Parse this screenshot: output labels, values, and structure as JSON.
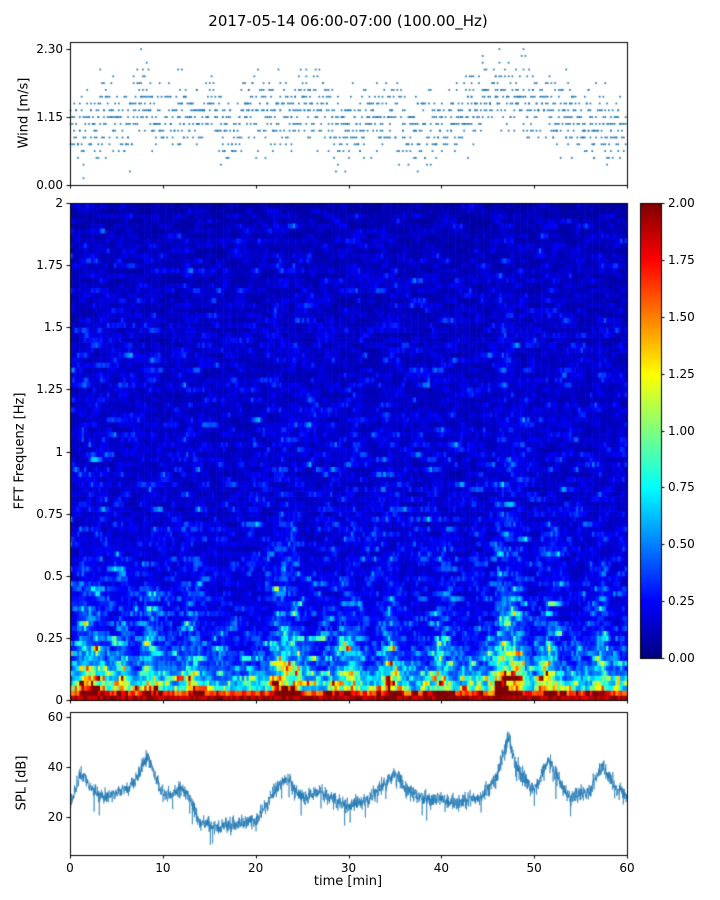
{
  "figure": {
    "title": "2017-05-14 06:00-07:00 (100.00_Hz)",
    "background": "#ffffff",
    "accent_blue": "#1f77b4"
  },
  "chart_data": [
    {
      "id": "wind",
      "type": "scatter",
      "ylabel": "Wind [m/s]",
      "ylim": [
        0,
        2.42
      ],
      "yticks": [
        "0.00",
        "1.15",
        "2.30"
      ],
      "ytick_values": [
        0,
        1.15,
        2.3
      ],
      "xlim": [
        0,
        60
      ],
      "marker_color": "#1f77b4",
      "value_step": 0.115,
      "value_range": [
        0.115,
        2.3
      ],
      "envelope": [
        [
          0,
          0.7
        ],
        [
          2,
          1.0
        ],
        [
          4,
          1.2
        ],
        [
          6,
          0.95
        ],
        [
          8,
          1.45
        ],
        [
          10,
          1.0
        ],
        [
          12,
          1.3
        ],
        [
          14,
          1.05
        ],
        [
          15,
          1.35
        ],
        [
          17,
          0.9
        ],
        [
          19,
          1.15
        ],
        [
          21,
          1.25
        ],
        [
          23,
          1.15
        ],
        [
          25,
          1.4
        ],
        [
          27,
          1.3
        ],
        [
          29,
          0.9
        ],
        [
          31,
          1.0
        ],
        [
          33,
          1.1
        ],
        [
          35,
          1.15
        ],
        [
          37,
          0.9
        ],
        [
          39,
          1.0
        ],
        [
          41,
          1.05
        ],
        [
          43,
          1.25
        ],
        [
          45,
          1.45
        ],
        [
          47,
          1.55
        ],
        [
          49,
          1.45
        ],
        [
          51,
          1.35
        ],
        [
          53,
          1.2
        ],
        [
          55,
          1.0
        ],
        [
          57,
          1.1
        ],
        [
          59,
          1.0
        ],
        [
          60,
          1.0
        ]
      ]
    },
    {
      "id": "spectrogram",
      "type": "heatmap",
      "ylabel": "FFT Frequenz [Hz]",
      "ylim": [
        0,
        2
      ],
      "yticks": [
        "0",
        "0.25",
        "0.5",
        "0.75",
        "1",
        "1.25",
        "1.5",
        "1.75",
        "2"
      ],
      "ytick_values": [
        0,
        0.25,
        0.5,
        0.75,
        1,
        1.25,
        1.5,
        1.75,
        2
      ],
      "xlim": [
        0,
        60
      ],
      "colormap": "jet",
      "vmin": 0,
      "vmax": 2,
      "nx": 240,
      "ny": 100,
      "base_profile": [
        [
          0.0,
          1.95
        ],
        [
          0.02,
          1.85
        ],
        [
          0.05,
          1.1
        ],
        [
          0.1,
          0.75
        ],
        [
          0.15,
          0.55
        ],
        [
          0.2,
          0.45
        ],
        [
          0.3,
          0.33
        ],
        [
          0.5,
          0.27
        ],
        [
          0.8,
          0.23
        ],
        [
          1.2,
          0.21
        ],
        [
          1.6,
          0.19
        ],
        [
          1.9,
          0.16
        ],
        [
          2.0,
          0.12
        ]
      ],
      "burst_times": [
        1.5,
        3,
        5.5,
        8.5,
        13,
        22.5,
        24,
        30,
        34.5,
        40,
        46.5,
        48,
        51.5,
        57
      ],
      "burst_strength": [
        0.5,
        0.35,
        0.4,
        0.45,
        0.3,
        0.5,
        0.4,
        0.35,
        0.4,
        0.3,
        0.7,
        0.55,
        0.4,
        0.35
      ]
    },
    {
      "id": "spl",
      "type": "line",
      "ylabel": "SPL [dB]",
      "xlabel": "time [min]",
      "ylim": [
        5,
        62
      ],
      "yticks": [
        "20",
        "40",
        "60"
      ],
      "ytick_values": [
        20,
        40,
        60
      ],
      "xlim": [
        0,
        60
      ],
      "xticks": [
        "0",
        "10",
        "20",
        "30",
        "40",
        "50",
        "60"
      ],
      "xtick_values": [
        0,
        10,
        20,
        30,
        40,
        50,
        60
      ],
      "line_color": "#1f77b4",
      "noise_amplitude": 3.5,
      "envelope": [
        [
          0,
          24
        ],
        [
          0.5,
          30
        ],
        [
          1,
          36
        ],
        [
          1.5,
          38
        ],
        [
          2,
          33
        ],
        [
          3,
          29
        ],
        [
          4,
          28
        ],
        [
          5,
          30
        ],
        [
          6,
          31
        ],
        [
          7,
          34
        ],
        [
          8,
          43
        ],
        [
          8.5,
          44
        ],
        [
          9,
          38
        ],
        [
          10,
          29
        ],
        [
          11,
          29
        ],
        [
          12,
          31
        ],
        [
          13,
          27
        ],
        [
          14,
          18
        ],
        [
          15,
          17
        ],
        [
          16,
          16
        ],
        [
          17,
          17
        ],
        [
          18,
          17
        ],
        [
          19,
          18
        ],
        [
          20,
          19
        ],
        [
          21,
          24
        ],
        [
          22,
          31
        ],
        [
          23,
          35
        ],
        [
          23.5,
          36
        ],
        [
          24,
          32
        ],
        [
          25,
          28
        ],
        [
          26,
          29
        ],
        [
          27,
          30
        ],
        [
          28,
          28
        ],
        [
          29,
          26
        ],
        [
          30,
          25
        ],
        [
          31,
          26
        ],
        [
          32,
          27
        ],
        [
          33,
          30
        ],
        [
          34,
          34
        ],
        [
          35,
          37
        ],
        [
          35.5,
          36
        ],
        [
          36,
          32
        ],
        [
          37,
          29
        ],
        [
          38,
          28
        ],
        [
          39,
          27
        ],
        [
          40,
          27
        ],
        [
          41,
          26
        ],
        [
          42,
          26
        ],
        [
          43,
          27
        ],
        [
          44,
          28
        ],
        [
          45,
          31
        ],
        [
          46,
          36
        ],
        [
          46.8,
          47
        ],
        [
          47.2,
          53
        ],
        [
          47.6,
          46
        ],
        [
          48,
          41
        ],
        [
          49,
          35
        ],
        [
          50,
          31
        ],
        [
          51,
          38
        ],
        [
          51.5,
          42
        ],
        [
          52,
          40
        ],
        [
          53,
          32
        ],
        [
          54,
          28
        ],
        [
          55,
          29
        ],
        [
          56,
          31
        ],
        [
          57,
          38
        ],
        [
          57.5,
          40
        ],
        [
          58,
          36
        ],
        [
          59,
          31
        ],
        [
          60,
          29
        ]
      ]
    }
  ],
  "colorbar": {
    "ticks": [
      "2.00",
      "1.75",
      "1.50",
      "1.25",
      "1.00",
      "0.75",
      "0.50",
      "0.25",
      "0.00"
    ],
    "tick_values": [
      2.0,
      1.75,
      1.5,
      1.25,
      1.0,
      0.75,
      0.5,
      0.25,
      0.0
    ]
  }
}
